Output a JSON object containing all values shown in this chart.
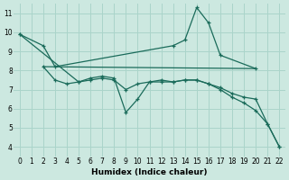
{
  "background_color": "#cce8e0",
  "grid_color": "#aad4ca",
  "line_color": "#1a6b5a",
  "xlabel": "Humidex (Indice chaleur)",
  "xlim": [
    -0.5,
    22.5
  ],
  "ylim": [
    3.5,
    11.5
  ],
  "xticks": [
    0,
    1,
    2,
    3,
    4,
    5,
    6,
    7,
    8,
    9,
    10,
    11,
    12,
    13,
    14,
    15,
    16,
    17,
    18,
    19,
    20,
    21,
    22
  ],
  "yticks": [
    4,
    5,
    6,
    7,
    8,
    9,
    10,
    11
  ],
  "series": [
    {
      "x": [
        0,
        2,
        3,
        13,
        14,
        15,
        16,
        17,
        20
      ],
      "y": [
        9.9,
        9.3,
        8.2,
        9.3,
        9.6,
        11.3,
        10.5,
        8.8,
        8.1
      ],
      "marker": true
    },
    {
      "x": [
        2,
        20
      ],
      "y": [
        8.2,
        8.1
      ],
      "marker": false
    },
    {
      "x": [
        2,
        3,
        4,
        5,
        6,
        7,
        8,
        9,
        10,
        11,
        12,
        13,
        14,
        15,
        16,
        17,
        18,
        19,
        20,
        21,
        22
      ],
      "y": [
        8.2,
        7.5,
        7.3,
        7.4,
        7.5,
        7.6,
        7.5,
        7.0,
        7.3,
        7.4,
        7.4,
        7.4,
        7.5,
        7.5,
        7.3,
        7.1,
        6.8,
        6.6,
        6.5,
        5.2,
        4.0
      ],
      "marker": true
    },
    {
      "x": [
        0,
        5,
        6,
        7,
        8,
        9,
        10,
        11,
        12,
        13,
        14,
        15,
        16,
        17,
        18,
        19,
        20,
        21,
        22
      ],
      "y": [
        9.9,
        7.4,
        7.6,
        7.7,
        7.6,
        5.8,
        6.5,
        7.4,
        7.5,
        7.4,
        7.5,
        7.5,
        7.3,
        7.0,
        6.6,
        6.3,
        5.9,
        5.2,
        4.0
      ],
      "marker": true
    }
  ]
}
